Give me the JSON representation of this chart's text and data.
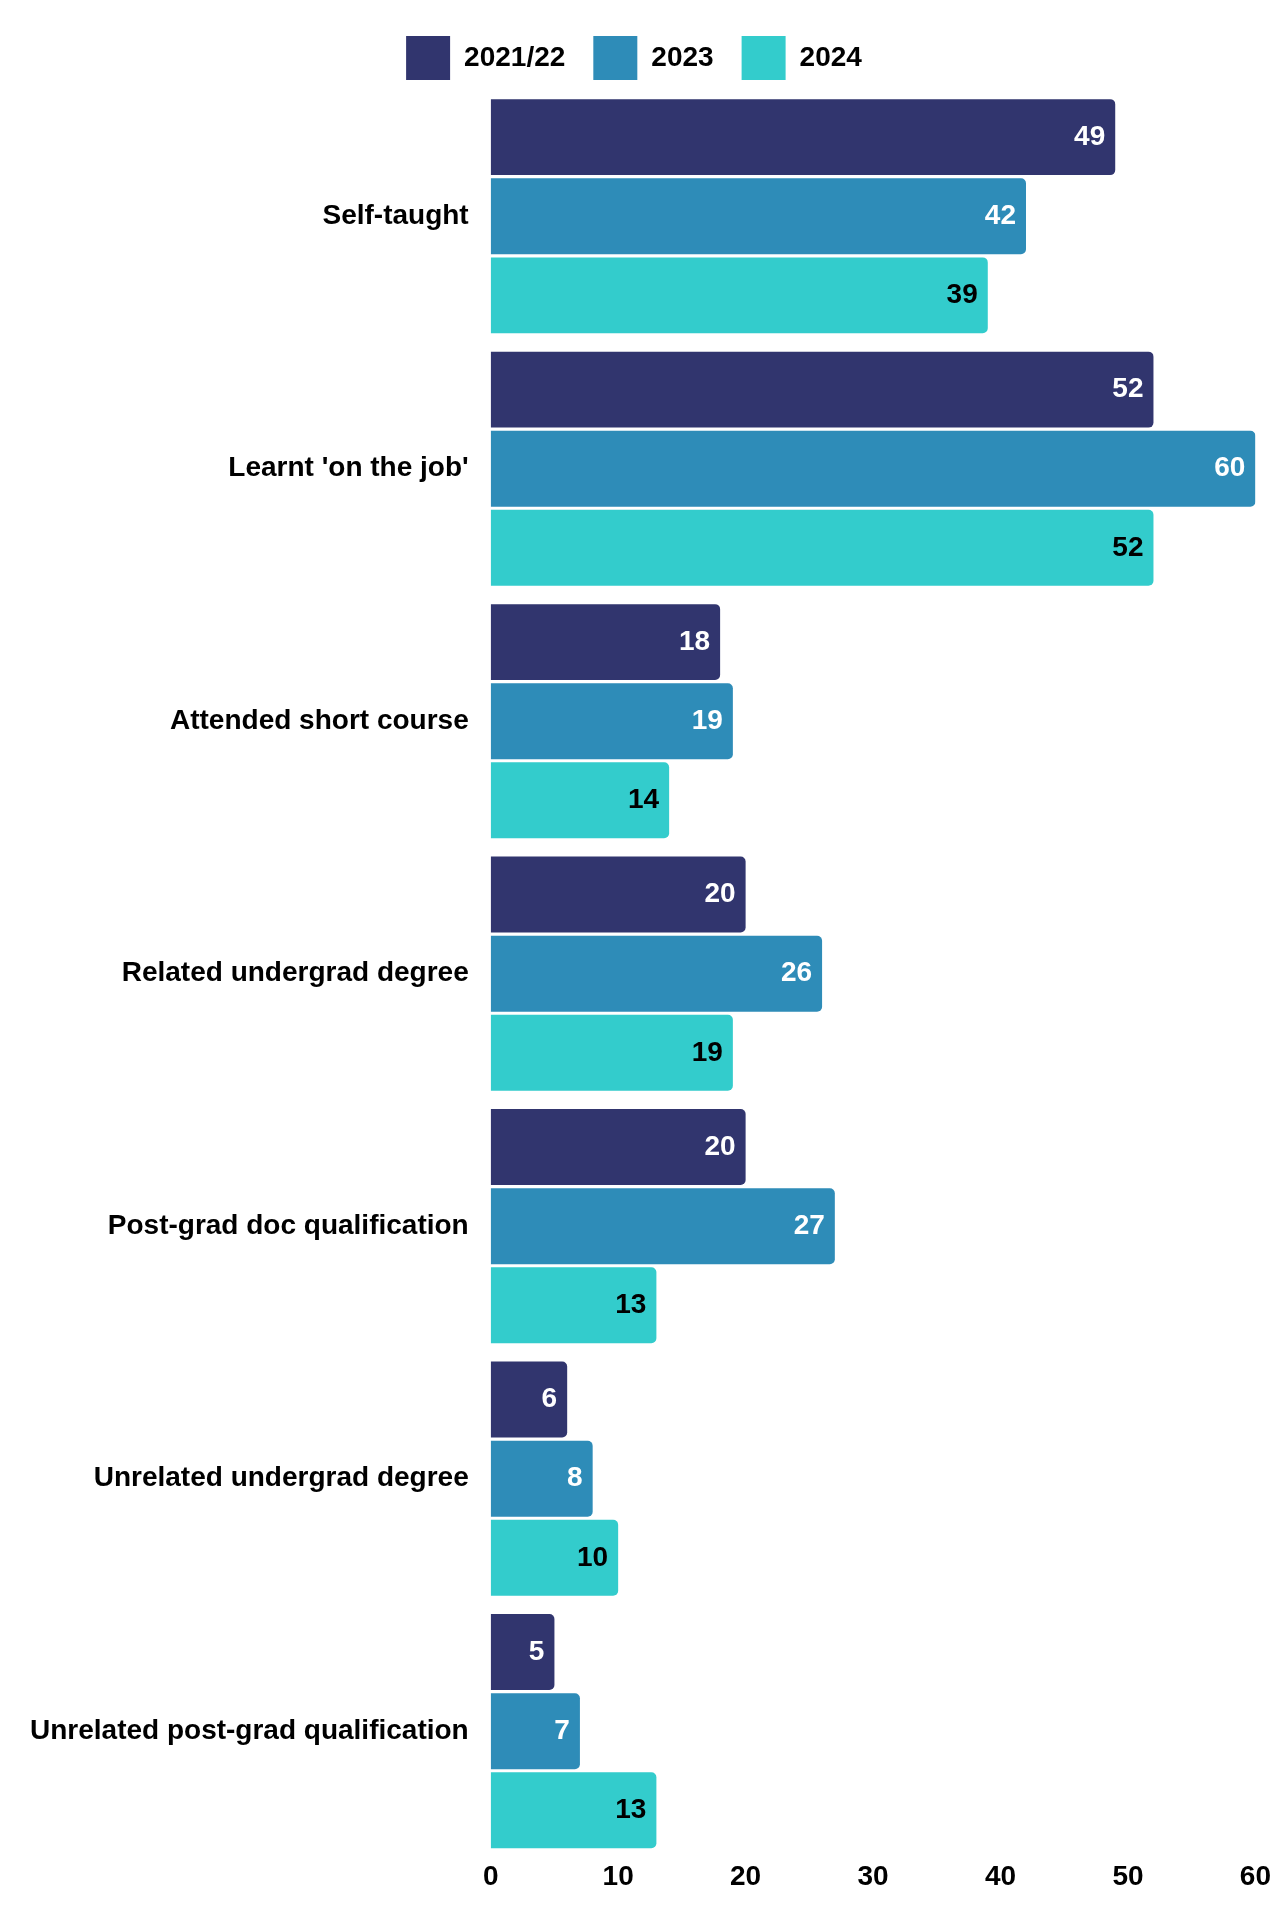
{
  "chart_data": {
    "type": "bar",
    "orientation": "horizontal",
    "categories": [
      "Self-taught",
      "Learnt 'on the job'",
      "Attended short course",
      "Related undergrad degree",
      "Post-grad doc qualification",
      "Unrelated undergrad degree",
      "Unrelated post-grad qualification"
    ],
    "series": [
      {
        "name": "2021/22",
        "color": "#31356e",
        "values": [
          49,
          52,
          18,
          20,
          20,
          6,
          5
        ]
      },
      {
        "name": "2023",
        "color": "#2e8cb8",
        "values": [
          42,
          60,
          19,
          26,
          27,
          8,
          7
        ]
      },
      {
        "name": "2024",
        "color": "#33cccc",
        "values": [
          39,
          52,
          14,
          19,
          13,
          10,
          13
        ]
      }
    ],
    "xlim": [
      0,
      60
    ],
    "xticks": [
      0,
      10,
      20,
      30,
      40,
      50,
      60
    ],
    "grid": false,
    "legend": "top",
    "data_labels": true
  }
}
